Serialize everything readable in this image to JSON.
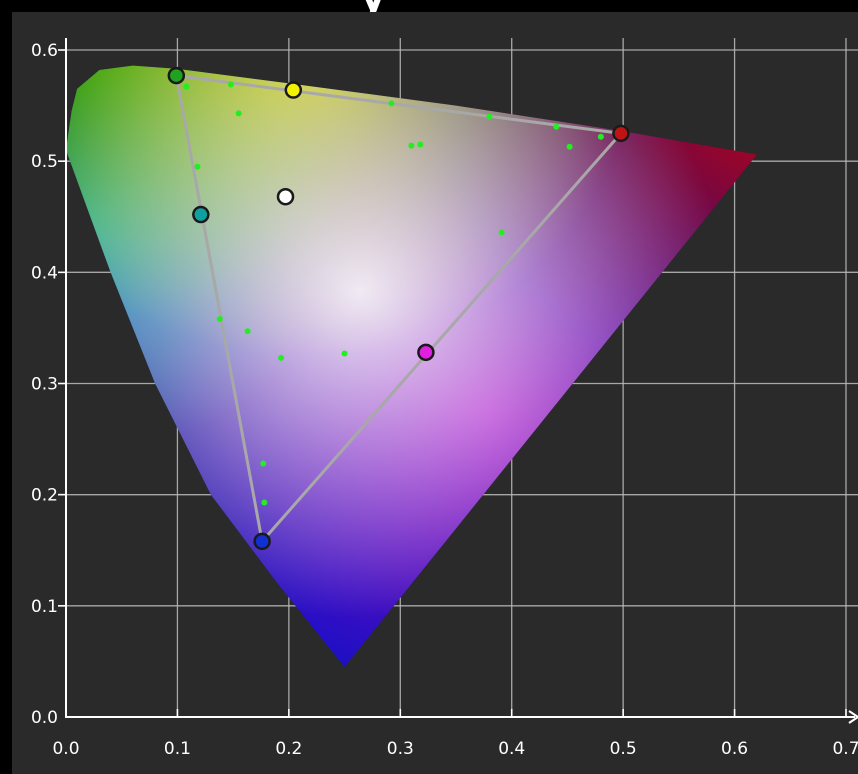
{
  "chart_data": {
    "type": "scatter",
    "title": "",
    "xlabel": "",
    "ylabel": "",
    "xlim": [
      0.0,
      0.7
    ],
    "ylim": [
      0.0,
      0.6
    ],
    "x_ticks": [
      "0.0",
      "0.1",
      "0.2",
      "0.3",
      "0.4",
      "0.5",
      "0.6",
      "0.7"
    ],
    "y_ticks": [
      "0.0",
      "0.1",
      "0.2",
      "0.3",
      "0.4",
      "0.5",
      "0.6"
    ],
    "grid": true,
    "background": "#2a2a2a",
    "locus_outline": [
      [
        0.0,
        0.51
      ],
      [
        0.005,
        0.545
      ],
      [
        0.01,
        0.565
      ],
      [
        0.03,
        0.582
      ],
      [
        0.06,
        0.586
      ],
      [
        0.1,
        0.583
      ],
      [
        0.2,
        0.57
      ],
      [
        0.35,
        0.55
      ],
      [
        0.5,
        0.527
      ],
      [
        0.62,
        0.506
      ],
      [
        0.25,
        0.045
      ],
      [
        0.19,
        0.12
      ],
      [
        0.13,
        0.2
      ],
      [
        0.08,
        0.3
      ],
      [
        0.04,
        0.4
      ],
      [
        0.0,
        0.51
      ]
    ],
    "gamut_triangle": {
      "color": "#a8a8a8",
      "vertices": [
        {
          "name": "green",
          "x": 0.099,
          "y": 0.577,
          "color": "#1fa31f"
        },
        {
          "name": "red",
          "x": 0.498,
          "y": 0.525,
          "color": "#c01414"
        },
        {
          "name": "blue",
          "x": 0.176,
          "y": 0.158,
          "color": "#1030d0"
        }
      ]
    },
    "secondary_points": [
      {
        "name": "yellow",
        "x": 0.204,
        "y": 0.564,
        "color": "#f2f200"
      },
      {
        "name": "cyan",
        "x": 0.121,
        "y": 0.452,
        "color": "#10a0a0"
      },
      {
        "name": "magenta",
        "x": 0.323,
        "y": 0.328,
        "color": "#e020e0"
      },
      {
        "name": "white",
        "x": 0.197,
        "y": 0.468,
        "color": "#ffffff"
      }
    ],
    "measurement_points": {
      "color": "#22ee22",
      "points": [
        [
          0.108,
          0.567
        ],
        [
          0.148,
          0.569
        ],
        [
          0.155,
          0.543
        ],
        [
          0.292,
          0.552
        ],
        [
          0.38,
          0.54
        ],
        [
          0.44,
          0.531
        ],
        [
          0.452,
          0.513
        ],
        [
          0.48,
          0.522
        ],
        [
          0.31,
          0.514
        ],
        [
          0.318,
          0.515
        ],
        [
          0.118,
          0.495
        ],
        [
          0.391,
          0.436
        ],
        [
          0.138,
          0.358
        ],
        [
          0.163,
          0.347
        ],
        [
          0.193,
          0.323
        ],
        [
          0.25,
          0.327
        ],
        [
          0.322,
          0.323
        ],
        [
          0.177,
          0.228
        ],
        [
          0.178,
          0.193
        ],
        [
          0.176,
          0.158
        ]
      ]
    }
  }
}
